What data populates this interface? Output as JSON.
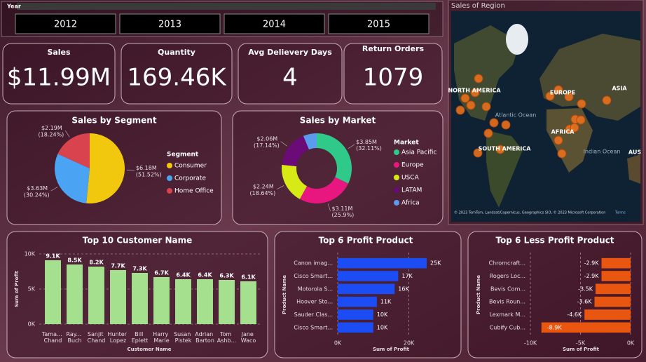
{
  "slicer": {
    "title": "Year",
    "items": [
      "2012",
      "2013",
      "2014",
      "2015"
    ]
  },
  "cards": [
    {
      "label": "Sales",
      "value": "$11.99M"
    },
    {
      "label": "Quantity",
      "value": "169.46K"
    },
    {
      "label": "Avg Delievery Days",
      "value": 4
    },
    {
      "label": "Return Orders",
      "value": 1079
    }
  ],
  "map": {
    "title": "Sales of Region",
    "labels": [
      "NORTH AMERICA",
      "EUROPE",
      "ASIA",
      "Atlantic Ocean",
      "AFRICA",
      "SOUTH AMERICA",
      "Indian Ocean",
      "AUS"
    ],
    "attribution": "© 2023 TomTom, Landsat/Copernicus, Geographics SIO, © 2023 Microsoft Corporation",
    "terms": "Terms"
  },
  "chart_data": [
    {
      "type": "pie",
      "title": "Sales by Segment",
      "legend_title": "Segment",
      "categories": [
        "Consumer",
        "Corporate",
        "Home Office"
      ],
      "values": [
        51.52,
        30.24,
        18.24
      ],
      "value_labels": [
        "$6.18M (51.52%)",
        "$3.63M (30.24%)",
        "$2.19M (18.24%)"
      ],
      "colors": [
        "#f2c80f",
        "#4ba4f3",
        "#d8434e"
      ]
    },
    {
      "type": "donut",
      "title": "Sales by Market",
      "legend_title": "Market",
      "categories": [
        "Asia Pacific",
        "Europe",
        "USCA",
        "LATAM",
        "Africa"
      ],
      "values": [
        32.11,
        25.9,
        18.64,
        17.14,
        6.21
      ],
      "value_labels": [
        "$3.85M (32.11%)",
        "$3.11M (25.9%)",
        "$2.24M (18.64%)",
        "$2.06M (17.14%)",
        null
      ],
      "colors": [
        "#2fc98a",
        "#e8177f",
        "#d8ea16",
        "#6a0b78",
        "#5b9bef"
      ]
    },
    {
      "type": "bar",
      "title": "Top 10 Customer Name",
      "x_label": "Customer Name",
      "y_label": "Sum of Profit",
      "categories": [
        "Tama... Chand",
        "Ray... Buch",
        "Sanjit Chand",
        "Hunter Lopez",
        "Bill Eplett",
        "Harry Marie",
        "Susan Pistek",
        "Adrian Barton",
        "Tom Ashb...",
        "Jane Waco"
      ],
      "values": [
        9100,
        8500,
        8200,
        7700,
        7300,
        6700,
        6400,
        6400,
        6300,
        6100
      ],
      "value_labels": [
        "9.1K",
        "8.5K",
        "8.2K",
        "7.7K",
        "7.3K",
        "6.7K",
        "6.4K",
        "6.4K",
        "6.3K",
        "6.1K"
      ],
      "color": "#a4e08e",
      "ylim": [
        0,
        10000
      ],
      "yticks": [
        {
          "value": 0,
          "label": "0K"
        },
        {
          "value": 5000,
          "label": "5K"
        },
        {
          "value": 10000,
          "label": "10K"
        }
      ],
      "grid": true
    },
    {
      "type": "hbar",
      "title": "Top 6 Profit Product",
      "x_label": "Sum of Profit",
      "y_label": "Product Name",
      "categories": [
        "Canon imag...",
        "Cisco Smart...",
        "Motorola S...",
        "Hoover Sto...",
        "Sauder Clas...",
        "Cisco Smart..."
      ],
      "values": [
        25000,
        17000,
        16000,
        11000,
        10000,
        10000
      ],
      "value_labels": [
        "25K",
        "17K",
        "16K",
        "11K",
        "10K",
        "10K"
      ],
      "color": "#1b4cf4",
      "xlim": [
        0,
        25000
      ],
      "xticks": [
        {
          "value": 0,
          "label": "0K"
        },
        {
          "value": 20000,
          "label": "20K"
        }
      ],
      "grid": true
    },
    {
      "type": "hbar",
      "title": "Top 6 Less Profit Product",
      "x_label": "Sum of Profit",
      "y_label": "Product Name",
      "categories": [
        "Chromcraft...",
        "Rogers Loc...",
        "Bevis Com...",
        "Bevis Roun...",
        "Lexmark M...",
        "Cubify Cub..."
      ],
      "values": [
        -2900,
        -2900,
        -3500,
        -3600,
        -4600,
        -8900
      ],
      "value_labels": [
        "-2.9K",
        "-2.9K",
        "-3.5K",
        "-3.6K",
        "-4.6K",
        "-8.9K"
      ],
      "color": "#e9560f",
      "xlim": [
        -10000,
        0
      ],
      "xticks": [
        {
          "value": -10000,
          "label": "-10K"
        },
        {
          "value": -5000,
          "label": "-5K"
        },
        {
          "value": 0,
          "label": "0K"
        }
      ],
      "grid": true
    }
  ]
}
